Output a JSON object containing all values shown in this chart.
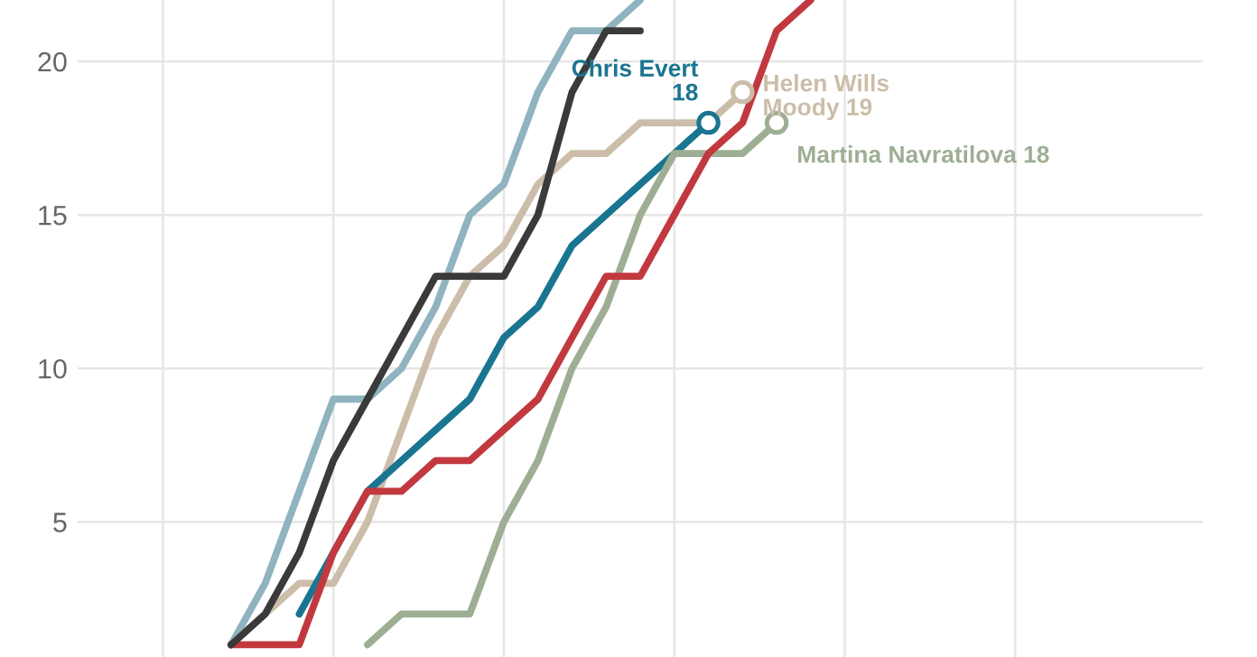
{
  "chart_data": {
    "type": "line",
    "categories": [
      null,
      null,
      null,
      null,
      null,
      null,
      null,
      null,
      null,
      null,
      null,
      null,
      null,
      null,
      null,
      null,
      null,
      null,
      null,
      null,
      null,
      null,
      null,
      null,
      null,
      null,
      null,
      null,
      null,
      null,
      null,
      null,
      null
    ],
    "ylim": [
      0.6,
      22
    ],
    "yticks": [
      5,
      10,
      15,
      20
    ],
    "grid": true,
    "tick_labels": "y",
    "series": [
      {
        "color": "#8fb3bf",
        "values": [
          null,
          null,
          null,
          null,
          1,
          3,
          6,
          9,
          9,
          10,
          12,
          15,
          16,
          19,
          21,
          21,
          22,
          null,
          null,
          null,
          null,
          null,
          null,
          null,
          null,
          null,
          null,
          null,
          null,
          null,
          null,
          null,
          null
        ]
      },
      {
        "name": "Helen Wills Moody",
        "color": "#cbbda9",
        "values": [
          null,
          null,
          null,
          null,
          1,
          2,
          3,
          3,
          5,
          8,
          11,
          13,
          14,
          16,
          17,
          17,
          18,
          18,
          18,
          19,
          null,
          null,
          null,
          null,
          null,
          null,
          null,
          null,
          null,
          null,
          null,
          null,
          null
        ],
        "value_labels": [
          null,
          null,
          null,
          null,
          null,
          null,
          null,
          null,
          null,
          null,
          null,
          null,
          null,
          null,
          null,
          null,
          null,
          null,
          null,
          "19",
          null,
          null,
          null,
          null,
          null,
          null,
          null,
          null,
          null,
          null,
          null,
          null,
          null
        ]
      },
      {
        "name": "Chris Evert",
        "color": "#1a7591",
        "values": [
          null,
          null,
          null,
          null,
          null,
          null,
          2,
          4,
          6,
          7,
          8,
          9,
          11,
          12,
          14,
          15,
          16,
          17,
          18,
          null,
          null,
          null,
          null,
          null,
          null,
          null,
          null,
          null,
          null,
          null,
          null,
          null,
          null
        ],
        "value_labels": [
          null,
          null,
          null,
          null,
          null,
          null,
          null,
          null,
          null,
          null,
          null,
          null,
          null,
          null,
          null,
          null,
          null,
          null,
          "18",
          null,
          null,
          null,
          null,
          null,
          null,
          null,
          null,
          null,
          null,
          null,
          null,
          null,
          null
        ]
      },
      {
        "name": "Martina Navratilova",
        "color": "#9eae94",
        "values": [
          null,
          null,
          null,
          null,
          null,
          null,
          null,
          null,
          1,
          2,
          2,
          2,
          5,
          7,
          10,
          12,
          15,
          17,
          17,
          17,
          18,
          null,
          null,
          null,
          null,
          null,
          null,
          null,
          null,
          null,
          null,
          null,
          null
        ],
        "value_labels": [
          null,
          null,
          null,
          null,
          null,
          null,
          null,
          null,
          null,
          null,
          null,
          null,
          null,
          null,
          null,
          null,
          null,
          null,
          null,
          null,
          "18",
          null,
          null,
          null,
          null,
          null,
          null,
          null,
          null,
          null,
          null,
          null,
          null
        ]
      },
      {
        "color": "#c1393f",
        "values": [
          null,
          null,
          null,
          null,
          1,
          1,
          1,
          4,
          6,
          6,
          7,
          7,
          8,
          9,
          11,
          13,
          13,
          15,
          17,
          18,
          21,
          22,
          null,
          null,
          null,
          null,
          null,
          null,
          null,
          null,
          null,
          null,
          null
        ]
      },
      {
        "color": "#3a3a3a",
        "values": [
          null,
          null,
          null,
          null,
          1,
          2,
          4,
          7,
          9,
          11,
          13,
          13,
          13,
          15,
          19,
          21,
          21,
          null,
          null,
          null,
          null,
          null,
          null,
          null,
          null,
          null,
          null,
          null,
          null,
          null,
          null,
          null,
          null
        ]
      }
    ]
  }
}
